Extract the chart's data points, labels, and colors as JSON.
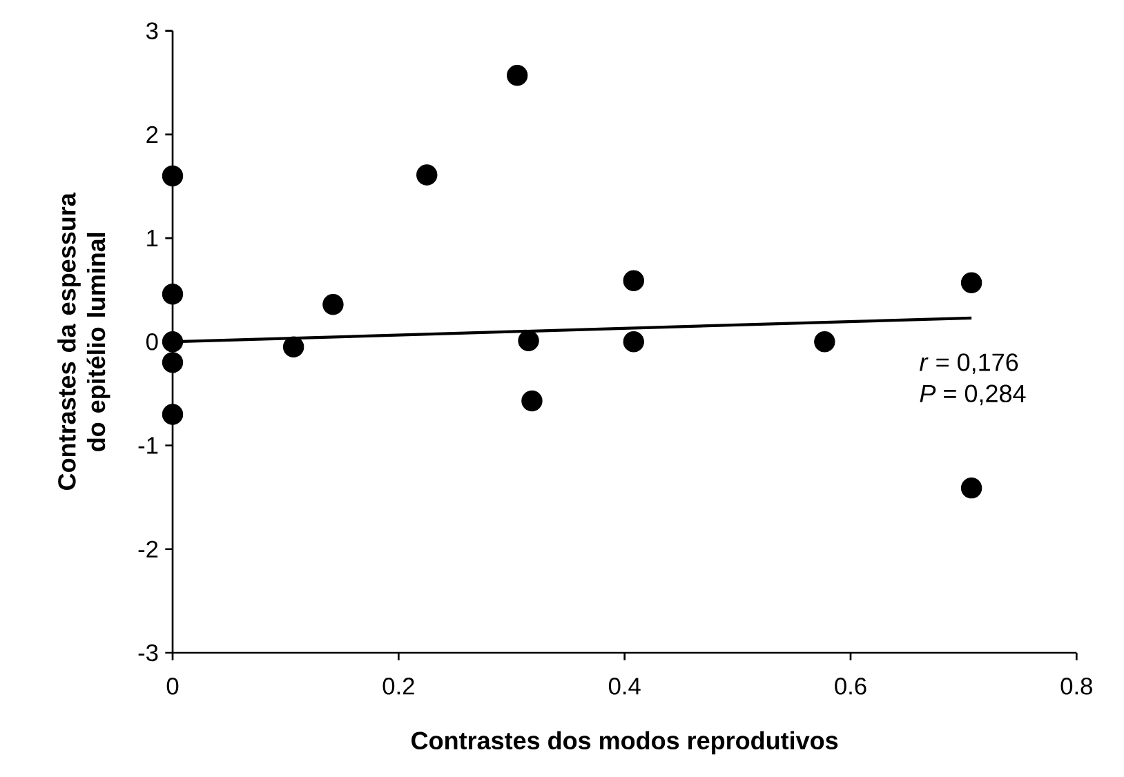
{
  "chart_data": {
    "type": "scatter",
    "xlabel": "Contrastes dos modos reprodutivos",
    "ylabel": "Contrastes da espessura do epitélio luminal",
    "xlim": [
      0,
      0.8
    ],
    "xticks": [
      0,
      0.2,
      0.4,
      0.6,
      0.8
    ],
    "ylim": [
      -3,
      3
    ],
    "yticks": [
      -3,
      -2,
      -1,
      0,
      1,
      2,
      3
    ],
    "grid": false,
    "series": [
      {
        "type": "scatter",
        "color": "#000000",
        "marker": "circle",
        "x": [
          0,
          0,
          0,
          0,
          0,
          0.107,
          0.142,
          0.225,
          0.305,
          0.315,
          0.318,
          0.408,
          0.408,
          0.577,
          0.707,
          0.707
        ],
        "values": [
          1.6,
          0.46,
          0,
          -0.2,
          -0.7,
          -0.05,
          0.36,
          1.61,
          2.57,
          0.01,
          -0.57,
          0.59,
          0,
          0,
          0.57,
          -1.41
        ]
      },
      {
        "type": "line",
        "color": "#000000",
        "line_style": "solid",
        "marker": "none",
        "x": [
          0,
          0.707
        ],
        "values": [
          0,
          0.23
        ]
      }
    ],
    "annotations": [
      "*r* = 0,176",
      "*P* = 0,284"
    ]
  }
}
